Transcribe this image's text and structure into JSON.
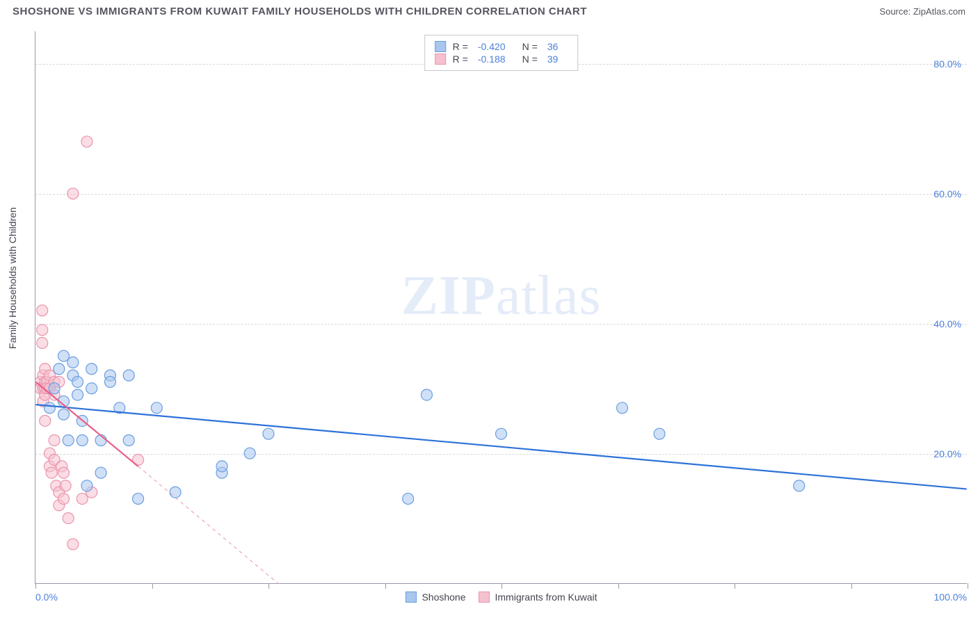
{
  "header": {
    "title": "SHOSHONE VS IMMIGRANTS FROM KUWAIT FAMILY HOUSEHOLDS WITH CHILDREN CORRELATION CHART",
    "source_label": "Source:",
    "source_value": "ZipAtlas.com"
  },
  "watermark": {
    "bold": "ZIP",
    "light": "atlas"
  },
  "chart": {
    "type": "scatter",
    "y_axis_label": "Family Households with Children",
    "xlim": [
      0,
      100
    ],
    "ylim": [
      0,
      85
    ],
    "x_tick_positions": [
      0,
      12.5,
      25,
      37.5,
      50,
      62.5,
      75,
      87.5,
      100
    ],
    "x_axis_min_label": "0.0%",
    "x_axis_max_label": "100.0%",
    "y_ticks": [
      {
        "v": 20,
        "label": "20.0%"
      },
      {
        "v": 40,
        "label": "40.0%"
      },
      {
        "v": 60,
        "label": "60.0%"
      },
      {
        "v": 80,
        "label": "80.0%"
      }
    ],
    "grid_color": "#d8d8de",
    "axis_color": "#9a9aa8",
    "background_color": "#ffffff",
    "marker_radius": 8,
    "marker_stroke_width": 1.2,
    "series": [
      {
        "name": "Shoshone",
        "color_fill": "#a9c6ee",
        "color_stroke": "#6a9de0",
        "line_color": "#2d72d9",
        "line_width": 2.2,
        "corr_R": "-0.420",
        "corr_N": "36",
        "trend": {
          "x1": 0,
          "y1": 27.5,
          "x2": 100,
          "y2": 14.5
        },
        "points": [
          [
            1.5,
            27
          ],
          [
            2,
            30
          ],
          [
            2.5,
            33
          ],
          [
            3,
            35
          ],
          [
            3,
            26
          ],
          [
            3,
            28
          ],
          [
            3.5,
            22
          ],
          [
            4,
            34
          ],
          [
            4,
            32
          ],
          [
            4.5,
            31
          ],
          [
            4.5,
            29
          ],
          [
            5,
            22
          ],
          [
            5,
            25
          ],
          [
            5.5,
            15
          ],
          [
            6,
            33
          ],
          [
            6,
            30
          ],
          [
            7,
            17
          ],
          [
            7,
            22
          ],
          [
            8,
            32
          ],
          [
            8,
            31
          ],
          [
            9,
            27
          ],
          [
            10,
            32
          ],
          [
            10,
            22
          ],
          [
            11,
            13
          ],
          [
            13,
            27
          ],
          [
            15,
            14
          ],
          [
            20,
            17
          ],
          [
            20,
            18
          ],
          [
            23,
            20
          ],
          [
            25,
            23
          ],
          [
            40,
            13
          ],
          [
            42,
            29
          ],
          [
            50,
            23
          ],
          [
            63,
            27
          ],
          [
            67,
            23
          ],
          [
            82,
            15
          ]
        ]
      },
      {
        "name": "Immigrants from Kuwait",
        "color_fill": "#f6c1cf",
        "color_stroke": "#ea94ac",
        "line_color": "#e85f87",
        "line_width": 2.2,
        "corr_R": "-0.188",
        "corr_N": "39",
        "trend_solid": {
          "x1": 0,
          "y1": 31,
          "x2": 11,
          "y2": 18
        },
        "trend_dash": {
          "x1": 11,
          "y1": 18,
          "x2": 26,
          "y2": 0
        },
        "points": [
          [
            0.5,
            31
          ],
          [
            0.5,
            30
          ],
          [
            0.7,
            42
          ],
          [
            0.7,
            39
          ],
          [
            0.7,
            37
          ],
          [
            0.8,
            32
          ],
          [
            0.8,
            30
          ],
          [
            0.8,
            28
          ],
          [
            1,
            33
          ],
          [
            1,
            31
          ],
          [
            1,
            30
          ],
          [
            1,
            29
          ],
          [
            1,
            25
          ],
          [
            1.2,
            31
          ],
          [
            1.2,
            30
          ],
          [
            1.5,
            32
          ],
          [
            1.5,
            30
          ],
          [
            1.5,
            20
          ],
          [
            1.5,
            18
          ],
          [
            1.7,
            17
          ],
          [
            2,
            31
          ],
          [
            2,
            29
          ],
          [
            2,
            19
          ],
          [
            2,
            22
          ],
          [
            2.2,
            15
          ],
          [
            2.5,
            31
          ],
          [
            2.5,
            14
          ],
          [
            2.5,
            12
          ],
          [
            2.8,
            18
          ],
          [
            3,
            17
          ],
          [
            3,
            13
          ],
          [
            3.2,
            15
          ],
          [
            3.5,
            10
          ],
          [
            4,
            60
          ],
          [
            4,
            6
          ],
          [
            5,
            13
          ],
          [
            5.5,
            68
          ],
          [
            6,
            14
          ],
          [
            11,
            19
          ]
        ]
      }
    ]
  },
  "legend_top": {
    "R_label": "R =",
    "N_label": "N ="
  },
  "legend_bottom": {
    "items": [
      "Shoshone",
      "Immigrants from Kuwait"
    ]
  }
}
